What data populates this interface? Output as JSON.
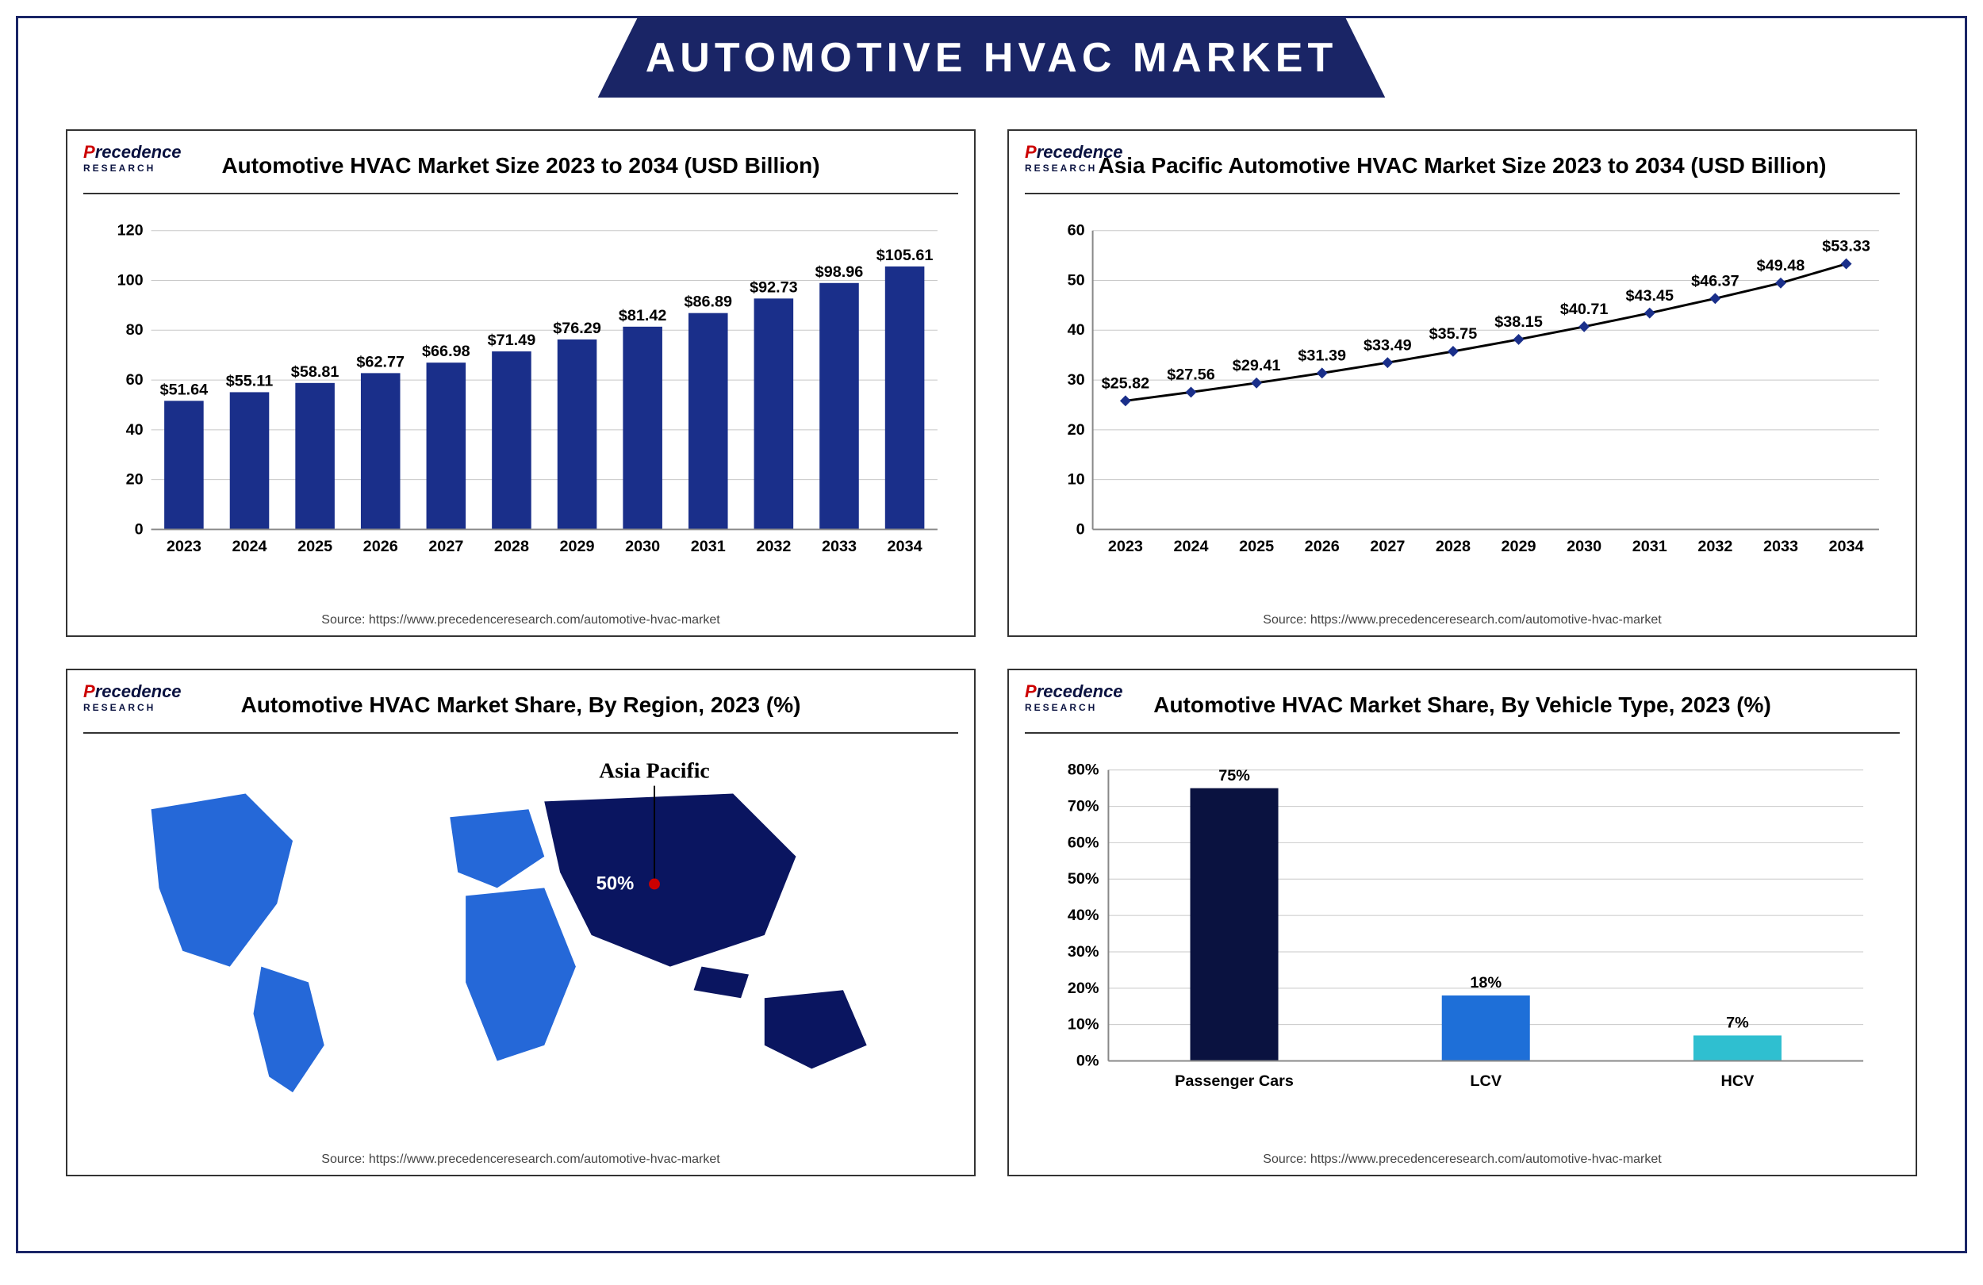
{
  "banner_title": "AUTOMOTIVE HVAC MARKET",
  "logo_text": "Precedence",
  "logo_sub": "RESEARCH",
  "source_text": "Source: https://www.precedenceresearch.com/automotive-hvac-market",
  "chart1": {
    "title": "Automotive HVAC Market Size 2023 to 2034 (USD Billion)",
    "type": "bar",
    "years": [
      "2023",
      "2024",
      "2025",
      "2026",
      "2027",
      "2028",
      "2029",
      "2030",
      "2031",
      "2032",
      "2033",
      "2034"
    ],
    "values": [
      51.64,
      55.11,
      58.81,
      62.77,
      66.98,
      71.49,
      76.29,
      81.42,
      86.89,
      92.73,
      98.96,
      105.61
    ],
    "labels": [
      "$51.64",
      "$55.11",
      "$58.81",
      "$62.77",
      "$66.98",
      "$71.49",
      "$76.29",
      "$81.42",
      "$86.89",
      "$92.73",
      "$98.96",
      "$105.61"
    ],
    "ymax": 120,
    "ystep": 20,
    "bar_color": "#1a2f8a",
    "grid_color": "#c8c8c8"
  },
  "chart2": {
    "title": "Asia Pacific Automotive HVAC Market Size 2023 to 2034 (USD Billion)",
    "type": "line",
    "years": [
      "2023",
      "2024",
      "2025",
      "2026",
      "2027",
      "2028",
      "2029",
      "2030",
      "2031",
      "2032",
      "2033",
      "2034"
    ],
    "values": [
      25.82,
      27.56,
      29.41,
      31.39,
      33.49,
      35.75,
      38.15,
      40.71,
      43.45,
      46.37,
      49.48,
      53.33
    ],
    "labels": [
      "$25.82",
      "$27.56",
      "$29.41",
      "$31.39",
      "$33.49",
      "$35.75",
      "$38.15",
      "$40.71",
      "$43.45",
      "$46.37",
      "$49.48",
      "$53.33"
    ],
    "ymax": 60,
    "ystep": 10,
    "line_color": "#000",
    "marker_color": "#1a2f8a",
    "grid_color": "#c8c8c8"
  },
  "chart3": {
    "title": "Automotive HVAC Market Share, By Region, 2023 (%)",
    "type": "map",
    "callout_region": "Asia Pacific",
    "callout_value": "50%",
    "region_colors": {
      "asia_pacific": "#0a1560",
      "other": "#2568d8"
    }
  },
  "chart4": {
    "title": "Automotive HVAC Market Share, By Vehicle Type, 2023 (%)",
    "type": "bar",
    "categories": [
      "Passenger Cars",
      "LCV",
      "HCV"
    ],
    "values": [
      75,
      18,
      7
    ],
    "labels": [
      "75%",
      "18%",
      "7%"
    ],
    "bar_colors": [
      "#0a1240",
      "#1e6fd8",
      "#2fbfd0"
    ],
    "ymax": 80,
    "ystep": 10,
    "grid_color": "#c8c8c8"
  }
}
